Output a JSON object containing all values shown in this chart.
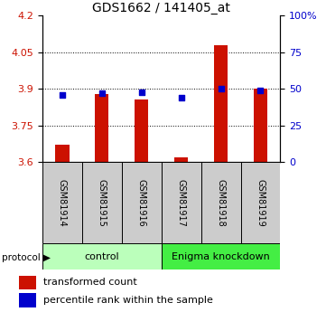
{
  "title": "GDS1662 / 141405_at",
  "samples": [
    "GSM81914",
    "GSM81915",
    "GSM81916",
    "GSM81917",
    "GSM81918",
    "GSM81919"
  ],
  "red_values": [
    3.67,
    3.88,
    3.855,
    3.62,
    4.08,
    3.9
  ],
  "blue_values": [
    46,
    47,
    48,
    44,
    50,
    49
  ],
  "y_min": 3.6,
  "y_max": 4.2,
  "y_ticks_left": [
    3.6,
    3.75,
    3.9,
    4.05,
    4.2
  ],
  "y_ticks_right": [
    0,
    25,
    50,
    75,
    100
  ],
  "red_color": "#cc1100",
  "blue_color": "#0000cc",
  "bar_width": 0.35,
  "control_label": "control",
  "knockdown_label": "Enigma knockdown",
  "protocol_label": "protocol",
  "legend_red": "transformed count",
  "legend_blue": "percentile rank within the sample",
  "control_bg": "#bbffbb",
  "knockdown_bg": "#44ee44",
  "sample_bg": "#cccccc",
  "title_fontsize": 10,
  "tick_fontsize": 8,
  "label_fontsize": 7,
  "proto_fontsize": 8,
  "legend_fontsize": 8
}
